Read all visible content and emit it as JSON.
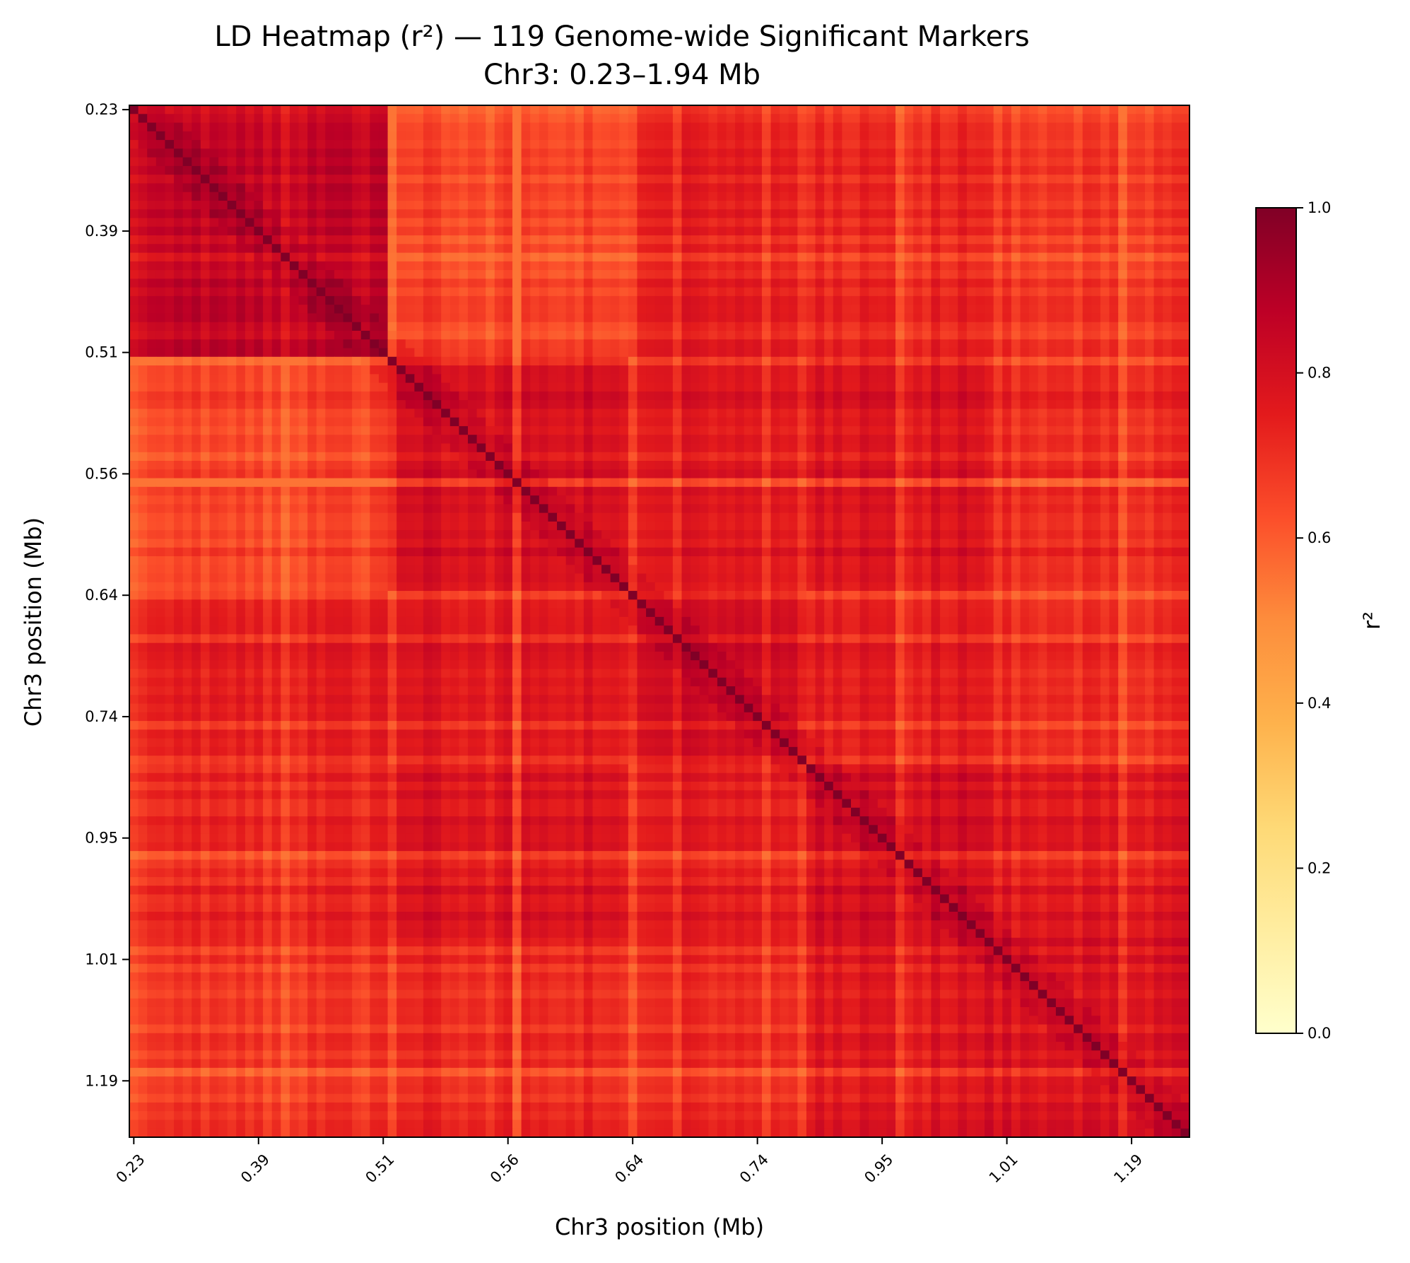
{
  "chart_data": {
    "type": "heatmap",
    "title": "LD Heatmap (r²) — 119 Genome-wide Significant Markers",
    "subtitle": "Chr3: 0.23–1.94 Mb",
    "xlabel": "Chr3 position (Mb)",
    "ylabel": "Chr3 position (Mb)",
    "n_markers": 119,
    "tick_marker_index": [
      0,
      14,
      28,
      42,
      56,
      70,
      84,
      98,
      112
    ],
    "x_tick_labels": [
      "0.23",
      "0.39",
      "0.51",
      "0.56",
      "0.64",
      "0.74",
      "0.95",
      "1.01",
      "1.19"
    ],
    "y_tick_labels": [
      "0.23",
      "0.39",
      "0.51",
      "0.56",
      "0.64",
      "0.74",
      "0.95",
      "1.01",
      "1.19"
    ],
    "colorbar": {
      "label": "r²",
      "range": [
        0.0,
        1.0
      ],
      "ticks": [
        0.0,
        0.2,
        0.4,
        0.6,
        0.8,
        1.0
      ],
      "tick_labels": [
        "0.0",
        "0.2",
        "0.4",
        "0.6",
        "0.8",
        "1.0"
      ],
      "colormap": "YlOrRd",
      "stops": [
        "#ffffcc",
        "#ffeda0",
        "#fed976",
        "#feb24c",
        "#fd8d3c",
        "#fc4e2a",
        "#e31a1c",
        "#bd0026",
        "#800026"
      ]
    },
    "blocks": [
      {
        "markers": "0–28",
        "mean_r2": 0.86
      },
      {
        "markers": "29–55",
        "mean_r2": 0.8
      },
      {
        "markers": "56–75",
        "mean_r2": 0.83
      },
      {
        "markers": "76–95",
        "mean_r2": 0.8
      },
      {
        "markers": "96–118",
        "mean_r2": 0.78
      }
    ],
    "diagonal_r2": 1.0,
    "typical_off_block_r2": [
      0.55,
      0.8
    ]
  }
}
